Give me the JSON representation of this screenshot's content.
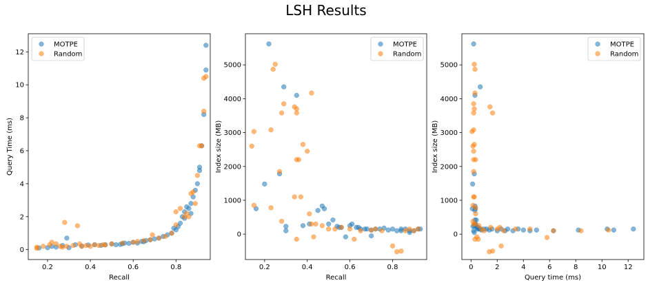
{
  "suptitle": "LSH Results",
  "colors": {
    "MOTPE": "#1f77b4",
    "Random": "#ff7f0e"
  },
  "chart_data": [
    {
      "type": "scatter",
      "xlabel": "Recall",
      "ylabel": "Query Time (ms)",
      "xlim": [
        0.11,
        0.96
      ],
      "ylim": [
        -0.6,
        13.1
      ],
      "xticks": [
        0.2,
        0.4,
        0.6,
        0.8
      ],
      "yticks": [
        0,
        2,
        4,
        6,
        8,
        10,
        12
      ],
      "legend_position": "upper-left",
      "series": [
        {
          "name": "MOTPE",
          "points": [
            [
              0.16,
              0.1
            ],
            [
              0.2,
              0.12
            ],
            [
              0.22,
              0.2
            ],
            [
              0.24,
              0.15
            ],
            [
              0.27,
              0.25
            ],
            [
              0.29,
              0.7
            ],
            [
              0.3,
              0.12
            ],
            [
              0.33,
              0.3
            ],
            [
              0.36,
              0.22
            ],
            [
              0.39,
              0.28
            ],
            [
              0.42,
              0.3
            ],
            [
              0.45,
              0.26
            ],
            [
              0.47,
              0.3
            ],
            [
              0.5,
              0.35
            ],
            [
              0.52,
              0.3
            ],
            [
              0.54,
              0.32
            ],
            [
              0.56,
              0.4
            ],
            [
              0.58,
              0.38
            ],
            [
              0.6,
              0.45
            ],
            [
              0.62,
              0.4
            ],
            [
              0.64,
              0.5
            ],
            [
              0.66,
              0.55
            ],
            [
              0.68,
              0.6
            ],
            [
              0.7,
              0.65
            ],
            [
              0.72,
              0.7
            ],
            [
              0.74,
              0.8
            ],
            [
              0.76,
              0.9
            ],
            [
              0.78,
              1.0
            ],
            [
              0.8,
              1.2
            ],
            [
              0.81,
              1.4
            ],
            [
              0.82,
              1.6
            ],
            [
              0.83,
              2.0
            ],
            [
              0.84,
              2.3
            ],
            [
              0.85,
              2.6
            ],
            [
              0.86,
              2.5
            ],
            [
              0.87,
              2.8
            ],
            [
              0.88,
              3.2
            ],
            [
              0.89,
              3.6
            ],
            [
              0.9,
              4.0
            ],
            [
              0.91,
              4.8
            ],
            [
              0.91,
              5.0
            ],
            [
              0.92,
              6.3
            ],
            [
              0.93,
              8.2
            ],
            [
              0.94,
              10.9
            ],
            [
              0.94,
              12.4
            ],
            [
              0.87,
              2.2
            ],
            [
              0.84,
              1.9
            ],
            [
              0.79,
              1.3
            ],
            [
              0.65,
              0.48
            ],
            [
              0.55,
              0.36
            ]
          ]
        },
        {
          "name": "Random",
          "points": [
            [
              0.15,
              0.15
            ],
            [
              0.15,
              0.08
            ],
            [
              0.18,
              0.2
            ],
            [
              0.21,
              0.3
            ],
            [
              0.22,
              0.45
            ],
            [
              0.24,
              0.35
            ],
            [
              0.26,
              0.2
            ],
            [
              0.27,
              0.15
            ],
            [
              0.28,
              1.65
            ],
            [
              0.29,
              0.2
            ],
            [
              0.32,
              0.25
            ],
            [
              0.34,
              1.45
            ],
            [
              0.35,
              0.35
            ],
            [
              0.36,
              0.2
            ],
            [
              0.38,
              0.25
            ],
            [
              0.4,
              0.2
            ],
            [
              0.42,
              0.3
            ],
            [
              0.44,
              0.25
            ],
            [
              0.46,
              0.3
            ],
            [
              0.5,
              0.35
            ],
            [
              0.55,
              0.4
            ],
            [
              0.6,
              0.45
            ],
            [
              0.65,
              0.55
            ],
            [
              0.68,
              0.6
            ],
            [
              0.69,
              0.9
            ],
            [
              0.72,
              0.7
            ],
            [
              0.75,
              0.8
            ],
            [
              0.78,
              1.0
            ],
            [
              0.8,
              1.5
            ],
            [
              0.8,
              2.3
            ],
            [
              0.82,
              2.5
            ],
            [
              0.84,
              2.0
            ],
            [
              0.85,
              2.2
            ],
            [
              0.86,
              2.0
            ],
            [
              0.87,
              3.4
            ],
            [
              0.88,
              3.5
            ],
            [
              0.89,
              2.8
            ],
            [
              0.9,
              4.5
            ],
            [
              0.91,
              6.3
            ],
            [
              0.92,
              6.3
            ],
            [
              0.93,
              8.4
            ],
            [
              0.93,
              10.4
            ],
            [
              0.94,
              10.5
            ],
            [
              0.62,
              0.5
            ],
            [
              0.47,
              0.28
            ]
          ]
        }
      ]
    },
    {
      "type": "scatter",
      "xlabel": "Recall",
      "ylabel": "Index size (MB)",
      "xlim": [
        0.11,
        0.96
      ],
      "ylim": [
        -750,
        5920
      ],
      "xticks": [
        0.2,
        0.4,
        0.6,
        0.8
      ],
      "yticks": [
        0,
        1000,
        2000,
        3000,
        4000,
        5000
      ],
      "legend_position": "upper-right",
      "series": [
        {
          "name": "MOTPE",
          "points": [
            [
              0.16,
              750
            ],
            [
              0.2,
              1480
            ],
            [
              0.22,
              5620
            ],
            [
              0.27,
              1780
            ],
            [
              0.29,
              4350
            ],
            [
              0.3,
              230
            ],
            [
              0.3,
              100
            ],
            [
              0.35,
              4100
            ],
            [
              0.38,
              250
            ],
            [
              0.41,
              300
            ],
            [
              0.45,
              700
            ],
            [
              0.47,
              830
            ],
            [
              0.48,
              750
            ],
            [
              0.5,
              300
            ],
            [
              0.52,
              420
            ],
            [
              0.54,
              230
            ],
            [
              0.56,
              200
            ],
            [
              0.58,
              -80
            ],
            [
              0.6,
              250
            ],
            [
              0.61,
              300
            ],
            [
              0.63,
              200
            ],
            [
              0.65,
              150
            ],
            [
              0.67,
              150
            ],
            [
              0.68,
              150
            ],
            [
              0.7,
              120
            ],
            [
              0.72,
              150
            ],
            [
              0.74,
              150
            ],
            [
              0.76,
              180
            ],
            [
              0.78,
              120
            ],
            [
              0.8,
              150
            ],
            [
              0.82,
              100
            ],
            [
              0.84,
              150
            ],
            [
              0.86,
              150
            ],
            [
              0.88,
              100
            ],
            [
              0.9,
              100
            ],
            [
              0.92,
              150
            ],
            [
              0.93,
              150
            ],
            [
              0.88,
              50
            ],
            [
              0.84,
              100
            ],
            [
              0.7,
              -50
            ],
            [
              0.55,
              200
            ],
            [
              0.64,
              200
            ]
          ]
        },
        {
          "name": "Random",
          "points": [
            [
              0.14,
              2600
            ],
            [
              0.15,
              3030
            ],
            [
              0.15,
              850
            ],
            [
              0.23,
              3080
            ],
            [
              0.24,
              4870
            ],
            [
              0.25,
              5020
            ],
            [
              0.23,
              780
            ],
            [
              0.27,
              1850
            ],
            [
              0.28,
              3580
            ],
            [
              0.28,
              380
            ],
            [
              0.29,
              3850
            ],
            [
              0.34,
              1100
            ],
            [
              0.34,
              3760
            ],
            [
              0.35,
              3580
            ],
            [
              0.35,
              2200
            ],
            [
              0.35,
              3700
            ],
            [
              0.36,
              2200
            ],
            [
              0.35,
              -150
            ],
            [
              0.37,
              1100
            ],
            [
              0.38,
              2650
            ],
            [
              0.4,
              2450
            ],
            [
              0.41,
              600
            ],
            [
              0.42,
              4170
            ],
            [
              0.42,
              300
            ],
            [
              0.44,
              300
            ],
            [
              0.43,
              -80
            ],
            [
              0.47,
              250
            ],
            [
              0.5,
              150
            ],
            [
              0.53,
              150
            ],
            [
              0.56,
              200
            ],
            [
              0.6,
              150
            ],
            [
              0.62,
              -150
            ],
            [
              0.65,
              100
            ],
            [
              0.7,
              120
            ],
            [
              0.75,
              100
            ],
            [
              0.8,
              -350
            ],
            [
              0.82,
              -520
            ],
            [
              0.84,
              -500
            ],
            [
              0.86,
              100
            ],
            [
              0.9,
              100
            ],
            [
              0.92,
              150
            ],
            [
              0.88,
              150
            ],
            [
              0.72,
              150
            ]
          ]
        }
      ]
    },
    {
      "type": "scatter",
      "xlabel": "Query time (ms)",
      "ylabel": "Index size (MB)",
      "xlim": [
        -0.7,
        13.2
      ],
      "ylim": [
        -750,
        5920
      ],
      "xticks": [
        0,
        2,
        4,
        6,
        8,
        10,
        12
      ],
      "yticks": [
        0,
        1000,
        2000,
        3000,
        4000,
        5000
      ],
      "legend_position": "upper-right",
      "series": [
        {
          "name": "MOTPE",
          "points": [
            [
              0.1,
              750
            ],
            [
              0.12,
              1480
            ],
            [
              0.2,
              5620
            ],
            [
              0.25,
              1780
            ],
            [
              0.7,
              4350
            ],
            [
              0.15,
              230
            ],
            [
              0.2,
              100
            ],
            [
              0.3,
              4100
            ],
            [
              0.25,
              250
            ],
            [
              0.3,
              300
            ],
            [
              0.3,
              700
            ],
            [
              0.3,
              830
            ],
            [
              0.32,
              750
            ],
            [
              0.35,
              300
            ],
            [
              0.4,
              420
            ],
            [
              0.4,
              230
            ],
            [
              0.45,
              200
            ],
            [
              0.5,
              150
            ],
            [
              0.6,
              150
            ],
            [
              0.7,
              150
            ],
            [
              0.8,
              120
            ],
            [
              1.0,
              150
            ],
            [
              1.2,
              150
            ],
            [
              1.4,
              120
            ],
            [
              1.6,
              150
            ],
            [
              2.0,
              100
            ],
            [
              2.3,
              150
            ],
            [
              2.6,
              100
            ],
            [
              2.8,
              150
            ],
            [
              3.2,
              100
            ],
            [
              3.6,
              150
            ],
            [
              4.0,
              120
            ],
            [
              4.5,
              100
            ],
            [
              5.0,
              120
            ],
            [
              6.3,
              100
            ],
            [
              8.2,
              120
            ],
            [
              10.4,
              150
            ],
            [
              10.9,
              120
            ],
            [
              12.4,
              150
            ],
            [
              0.3,
              420
            ],
            [
              0.25,
              50
            ],
            [
              0.55,
              200
            ]
          ]
        },
        {
          "name": "Random",
          "points": [
            [
              0.15,
              2600
            ],
            [
              0.08,
              3030
            ],
            [
              0.15,
              850
            ],
            [
              0.2,
              3080
            ],
            [
              0.3,
              4870
            ],
            [
              0.25,
              5020
            ],
            [
              0.35,
              780
            ],
            [
              0.2,
              1850
            ],
            [
              0.2,
              3580
            ],
            [
              0.15,
              380
            ],
            [
              0.2,
              3850
            ],
            [
              0.25,
              1100
            ],
            [
              1.45,
              3760
            ],
            [
              1.65,
              3580
            ],
            [
              0.35,
              2200
            ],
            [
              0.25,
              3700
            ],
            [
              0.2,
              2200
            ],
            [
              0.3,
              -150
            ],
            [
              0.2,
              1100
            ],
            [
              0.25,
              2650
            ],
            [
              0.2,
              2450
            ],
            [
              0.35,
              600
            ],
            [
              0.3,
              4170
            ],
            [
              0.2,
              300
            ],
            [
              0.3,
              300
            ],
            [
              0.45,
              -80
            ],
            [
              0.55,
              -150
            ],
            [
              0.6,
              250
            ],
            [
              0.8,
              150
            ],
            [
              1.0,
              100
            ],
            [
              1.4,
              -520
            ],
            [
              1.65,
              -500
            ],
            [
              2.3,
              -350
            ],
            [
              2.0,
              150
            ],
            [
              2.5,
              100
            ],
            [
              3.4,
              150
            ],
            [
              4.5,
              150
            ],
            [
              6.3,
              100
            ],
            [
              8.4,
              100
            ],
            [
              10.5,
              120
            ],
            [
              5.8,
              -100
            ],
            [
              1.5,
              200
            ],
            [
              2.2,
              200
            ]
          ]
        }
      ]
    }
  ]
}
